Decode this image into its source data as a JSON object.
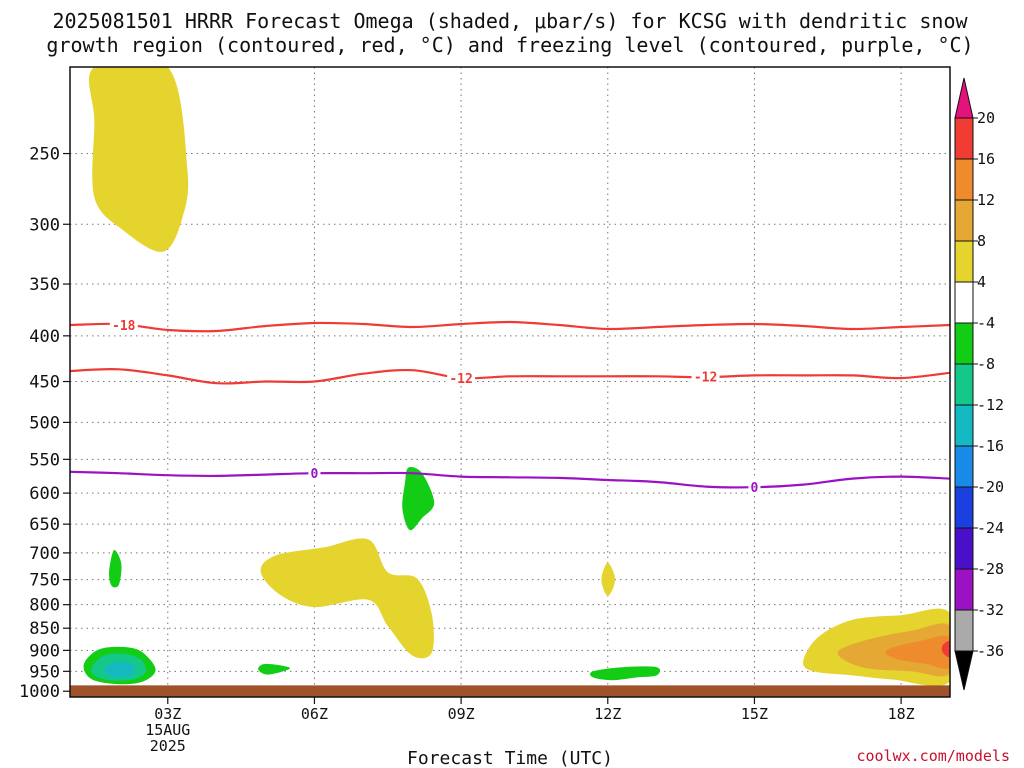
{
  "chart_data": {
    "type": "heatmap",
    "title_lines": [
      "2025081501 HRRR Forecast Omega (shaded, μbar/s) for KCSG with dendritic snow",
      "growth region (contoured, red, °C) and freezing level (contoured, purple, °C)"
    ],
    "xlabel": "Forecast Time (UTC)",
    "x_ticks": [
      {
        "hour": 3,
        "lines": [
          "03Z",
          "15AUG",
          "2025"
        ]
      },
      {
        "hour": 6,
        "lines": [
          "06Z"
        ]
      },
      {
        "hour": 9,
        "lines": [
          "09Z"
        ]
      },
      {
        "hour": 12,
        "lines": [
          "12Z"
        ]
      },
      {
        "hour": 15,
        "lines": [
          "15Z"
        ]
      },
      {
        "hour": 18,
        "lines": [
          "18Z"
        ]
      }
    ],
    "xlim": [
      1,
      19
    ],
    "y_ticks": [
      250,
      300,
      350,
      400,
      450,
      500,
      550,
      600,
      650,
      700,
      750,
      800,
      850,
      900,
      950,
      1000
    ],
    "ylim": [
      200,
      1015
    ],
    "y_scale": "log",
    "grid": true,
    "ground_level_hpa": 985,
    "colorbar": {
      "ticks": [
        20,
        16,
        12,
        8,
        4,
        -4,
        -8,
        -12,
        -16,
        -20,
        -24,
        -28,
        -32,
        -36
      ],
      "bins": [
        {
          "from": 16,
          "to": 20,
          "color": "#f03c32"
        },
        {
          "from": 12,
          "to": 16,
          "color": "#ee8b2c"
        },
        {
          "from": 8,
          "to": 12,
          "color": "#e6a834"
        },
        {
          "from": 4,
          "to": 8,
          "color": "#e5d32e"
        },
        {
          "from": -4,
          "to": 4,
          "color": "#ffffff"
        },
        {
          "from": -8,
          "to": -4,
          "color": "#12cc16"
        },
        {
          "from": -12,
          "to": -8,
          "color": "#14c88a"
        },
        {
          "from": -16,
          "to": -12,
          "color": "#15b9c2"
        },
        {
          "from": -20,
          "to": -16,
          "color": "#1a8ae8"
        },
        {
          "from": -24,
          "to": -20,
          "color": "#1c3fe0"
        },
        {
          "from": -28,
          "to": -24,
          "color": "#4a10c9"
        },
        {
          "from": -32,
          "to": -28,
          "color": "#9b12c4"
        },
        {
          "from": -36,
          "to": -32,
          "color": "#aaaaaa"
        }
      ],
      "over_color": "#e4127c",
      "under_color": "#000000"
    },
    "omega_regions": [
      {
        "label": "upper-ascent",
        "value": 6,
        "color": "#e5d32e",
        "points": [
          [
            1.5,
            200
          ],
          [
            3,
            200
          ],
          [
            3.4,
            260
          ],
          [
            3.3,
            295
          ],
          [
            2.9,
            322
          ],
          [
            2.1,
            305
          ],
          [
            1.5,
            280
          ],
          [
            1.5,
            230
          ]
        ]
      },
      {
        "label": "mid-ascent",
        "value": 6,
        "color": "#e5d32e",
        "points": [
          [
            4.9,
            735
          ],
          [
            5.2,
            705
          ],
          [
            6.2,
            690
          ],
          [
            7.1,
            676
          ],
          [
            7.5,
            736
          ],
          [
            8.1,
            748
          ],
          [
            8.4,
            820
          ],
          [
            8.4,
            905
          ],
          [
            8.0,
            912
          ],
          [
            7.5,
            845
          ],
          [
            7.1,
            790
          ],
          [
            6,
            805
          ],
          [
            5.3,
            780
          ]
        ]
      },
      {
        "label": "ascent-12z",
        "value": 6,
        "color": "#e5d32e",
        "points": [
          [
            12,
            718
          ],
          [
            12.15,
            750
          ],
          [
            12,
            782
          ],
          [
            11.87,
            750
          ]
        ]
      },
      {
        "label": "lower-ascent-18z",
        "value": 6,
        "color": "#e5d32e",
        "points": [
          [
            16.0,
            925
          ],
          [
            16.3,
            870
          ],
          [
            17.0,
            832
          ],
          [
            18.0,
            822
          ],
          [
            19,
            818
          ],
          [
            19,
            975
          ],
          [
            17.8,
            970
          ],
          [
            17,
            960
          ],
          [
            16.2,
            950
          ]
        ]
      },
      {
        "label": "lower-ascent-18z",
        "value": 10,
        "color": "#e6a834",
        "points": [
          [
            16.7,
            905
          ],
          [
            17.3,
            876
          ],
          [
            18.2,
            856
          ],
          [
            19,
            845
          ],
          [
            19,
            955
          ],
          [
            18.2,
            950
          ],
          [
            17.2,
            940
          ]
        ]
      },
      {
        "label": "lower-ascent-18z",
        "value": 14,
        "color": "#ee8b2c",
        "points": [
          [
            17.7,
            900
          ],
          [
            18.4,
            878
          ],
          [
            19,
            870
          ],
          [
            19,
            940
          ],
          [
            18.5,
            932
          ],
          [
            17.9,
            920
          ]
        ]
      },
      {
        "label": "lower-ascent-18z",
        "value": 18,
        "color": "#f03c32",
        "points": [
          [
            18.85,
            888
          ],
          [
            19,
            880
          ],
          [
            19,
            915
          ],
          [
            18.85,
            905
          ]
        ]
      },
      {
        "label": "descent-02z",
        "value": -6,
        "color": "#12cc16",
        "points": [
          [
            1.28,
            935
          ],
          [
            1.55,
            900
          ],
          [
            2.0,
            892
          ],
          [
            2.45,
            902
          ],
          [
            2.75,
            945
          ],
          [
            2.5,
            975
          ],
          [
            2.0,
            982
          ],
          [
            1.45,
            970
          ]
        ]
      },
      {
        "label": "descent-02z",
        "value": -10,
        "color": "#14c88a",
        "points": [
          [
            1.45,
            940
          ],
          [
            1.7,
            912
          ],
          [
            2.1,
            908
          ],
          [
            2.45,
            922
          ],
          [
            2.55,
            950
          ],
          [
            2.3,
            970
          ],
          [
            1.8,
            972
          ],
          [
            1.5,
            960
          ]
        ]
      },
      {
        "label": "descent-02z",
        "value": -14,
        "color": "#15b9c2",
        "points": [
          [
            1.7,
            945
          ],
          [
            1.95,
            928
          ],
          [
            2.25,
            932
          ],
          [
            2.32,
            955
          ],
          [
            2.05,
            965
          ],
          [
            1.8,
            960
          ]
        ]
      },
      {
        "label": "descent-02z-upper",
        "value": -6,
        "color": "#12cc16",
        "points": [
          [
            1.9,
            695
          ],
          [
            2.05,
            720
          ],
          [
            2.0,
            760
          ],
          [
            1.85,
            762
          ],
          [
            1.8,
            735
          ]
        ]
      },
      {
        "label": "descent-05z",
        "value": -6,
        "color": "#12cc16",
        "points": [
          [
            4.85,
            945
          ],
          [
            5.0,
            932
          ],
          [
            5.5,
            942
          ],
          [
            5.05,
            958
          ]
        ]
      },
      {
        "label": "descent-08z",
        "value": -6,
        "color": "#12cc16",
        "points": [
          [
            7.92,
            562
          ],
          [
            8.2,
            570
          ],
          [
            8.45,
            615
          ],
          [
            8.2,
            640
          ],
          [
            7.95,
            660
          ],
          [
            7.8,
            625
          ],
          [
            7.85,
            585
          ]
        ]
      },
      {
        "label": "descent-12z",
        "value": -6,
        "color": "#12cc16",
        "points": [
          [
            11.7,
            950
          ],
          [
            12.3,
            940
          ],
          [
            13,
            940
          ],
          [
            13,
            960
          ],
          [
            12.6,
            965
          ],
          [
            12.1,
            972
          ],
          [
            11.7,
            965
          ]
        ]
      }
    ],
    "contours": [
      {
        "kind": "dendritic-snow-growth",
        "value": -18,
        "label": "-18",
        "color": "#ee3b35",
        "points": [
          [
            1,
            389
          ],
          [
            2,
            388
          ],
          [
            3,
            394
          ],
          [
            4,
            395
          ],
          [
            5,
            390
          ],
          [
            6,
            387
          ],
          [
            7,
            388
          ],
          [
            8,
            391
          ],
          [
            9,
            388
          ],
          [
            10,
            386
          ],
          [
            11,
            389
          ],
          [
            12,
            393
          ],
          [
            13,
            391
          ],
          [
            14,
            389
          ],
          [
            15,
            388
          ],
          [
            16,
            390
          ],
          [
            17,
            393
          ],
          [
            18,
            391
          ],
          [
            19,
            389
          ]
        ],
        "label_positions": [
          [
            2.1,
            389
          ]
        ]
      },
      {
        "kind": "dendritic-snow-growth",
        "value": -12,
        "label": "-12",
        "color": "#ee3b35",
        "points": [
          [
            1,
            438
          ],
          [
            2,
            436
          ],
          [
            3,
            443
          ],
          [
            4,
            452
          ],
          [
            5,
            450
          ],
          [
            6,
            450
          ],
          [
            7,
            441
          ],
          [
            8,
            437
          ],
          [
            9,
            446
          ],
          [
            10,
            444
          ],
          [
            11,
            444
          ],
          [
            12,
            444
          ],
          [
            13,
            444
          ],
          [
            14,
            445
          ],
          [
            15,
            443
          ],
          [
            16,
            443
          ],
          [
            17,
            443
          ],
          [
            18,
            446
          ],
          [
            19,
            440
          ]
        ],
        "label_positions": [
          [
            9,
            446
          ],
          [
            14,
            444
          ]
        ]
      },
      {
        "kind": "freezing-level",
        "value": 0,
        "label": "0",
        "color": "#9b12c4",
        "points": [
          [
            1,
            568
          ],
          [
            2,
            570
          ],
          [
            3,
            573
          ],
          [
            4,
            574
          ],
          [
            5,
            572
          ],
          [
            6,
            570
          ],
          [
            7,
            570
          ],
          [
            8,
            570
          ],
          [
            9,
            575
          ],
          [
            10,
            576
          ],
          [
            11,
            577
          ],
          [
            12,
            580
          ],
          [
            13,
            583
          ],
          [
            14,
            590
          ],
          [
            15,
            591
          ],
          [
            16,
            587
          ],
          [
            17,
            578
          ],
          [
            18,
            575
          ],
          [
            19,
            578
          ]
        ],
        "label_positions": [
          [
            6,
            570
          ],
          [
            15,
            591
          ]
        ]
      }
    ]
  },
  "watermark": "coolwx.com/models"
}
